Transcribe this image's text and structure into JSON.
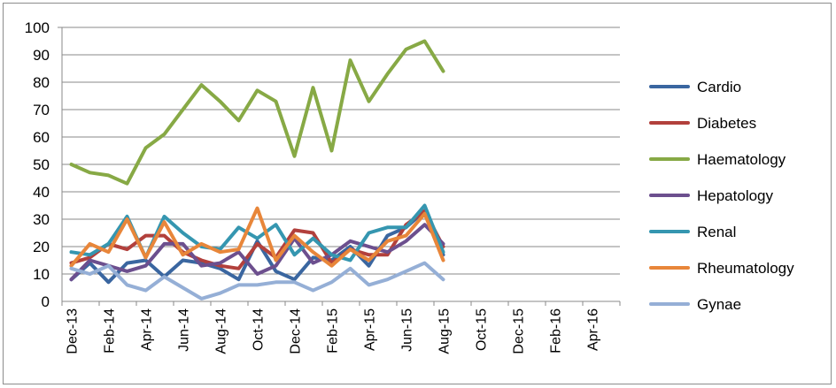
{
  "chart_data": {
    "type": "line",
    "title": "",
    "xlabel": "",
    "ylabel": "",
    "ylim": [
      0,
      100
    ],
    "yticks": [
      0,
      10,
      20,
      30,
      40,
      50,
      60,
      70,
      80,
      90,
      100
    ],
    "grid": "horizontal",
    "legend": "right",
    "x_tick_labels": [
      "Dec-13",
      "Feb-14",
      "Apr-14",
      "Jun-14",
      "Aug-14",
      "Oct-14",
      "Dec-14",
      "Feb-15",
      "Apr-15",
      "Jun-15",
      "Aug-15",
      "Oct-15",
      "Dec-15",
      "Feb-16",
      "Apr-16"
    ],
    "x": [
      "Dec-13",
      "Jan-14",
      "Feb-14",
      "Mar-14",
      "Apr-14",
      "May-14",
      "Jun-14",
      "Jul-14",
      "Aug-14",
      "Sep-14",
      "Oct-14",
      "Nov-14",
      "Dec-14",
      "Jan-15",
      "Feb-15",
      "Mar-15",
      "Apr-15",
      "May-15",
      "Jun-15",
      "Jul-15",
      "Aug-15"
    ],
    "series": [
      {
        "name": "Cardio",
        "color": "#3a66a0",
        "values": [
          8,
          14,
          7,
          14,
          15,
          9,
          15,
          14,
          12,
          8,
          22,
          11,
          8,
          16,
          15,
          20,
          13,
          24,
          27,
          33,
          17
        ]
      },
      {
        "name": "Diabetes",
        "color": "#b2403c",
        "values": [
          14,
          16,
          21,
          19,
          24,
          24,
          18,
          15,
          13,
          12,
          21,
          16,
          26,
          25,
          14,
          19,
          17,
          17,
          28,
          33,
          20
        ]
      },
      {
        "name": "Haematology",
        "color": "#87a945",
        "values": [
          50,
          47,
          46,
          43,
          56,
          61,
          70,
          79,
          73,
          66,
          77,
          73,
          53,
          78,
          55,
          88,
          73,
          83,
          92,
          95,
          84
        ]
      },
      {
        "name": "Hepatology",
        "color": "#6c4f8e",
        "values": [
          8,
          15,
          13,
          11,
          13,
          21,
          21,
          13,
          14,
          18,
          10,
          13,
          23,
          14,
          17,
          22,
          20,
          18,
          22,
          28,
          21
        ]
      },
      {
        "name": "Renal",
        "color": "#3596b0",
        "values": [
          18,
          17,
          21,
          31,
          16,
          31,
          25,
          20,
          19,
          27,
          23,
          28,
          17,
          23,
          17,
          15,
          25,
          27,
          27,
          35,
          18
        ]
      },
      {
        "name": "Rheumatology",
        "color": "#e8863a",
        "values": [
          13,
          21,
          18,
          30,
          16,
          29,
          17,
          21,
          18,
          19,
          34,
          15,
          24,
          18,
          13,
          19,
          15,
          22,
          24,
          32,
          15
        ]
      },
      {
        "name": "Gynae",
        "color": "#95afd6",
        "values": [
          12,
          10,
          13,
          6,
          4,
          9,
          5,
          1,
          3,
          6,
          6,
          7,
          7,
          4,
          7,
          12,
          6,
          8,
          11,
          14,
          8
        ]
      }
    ]
  }
}
